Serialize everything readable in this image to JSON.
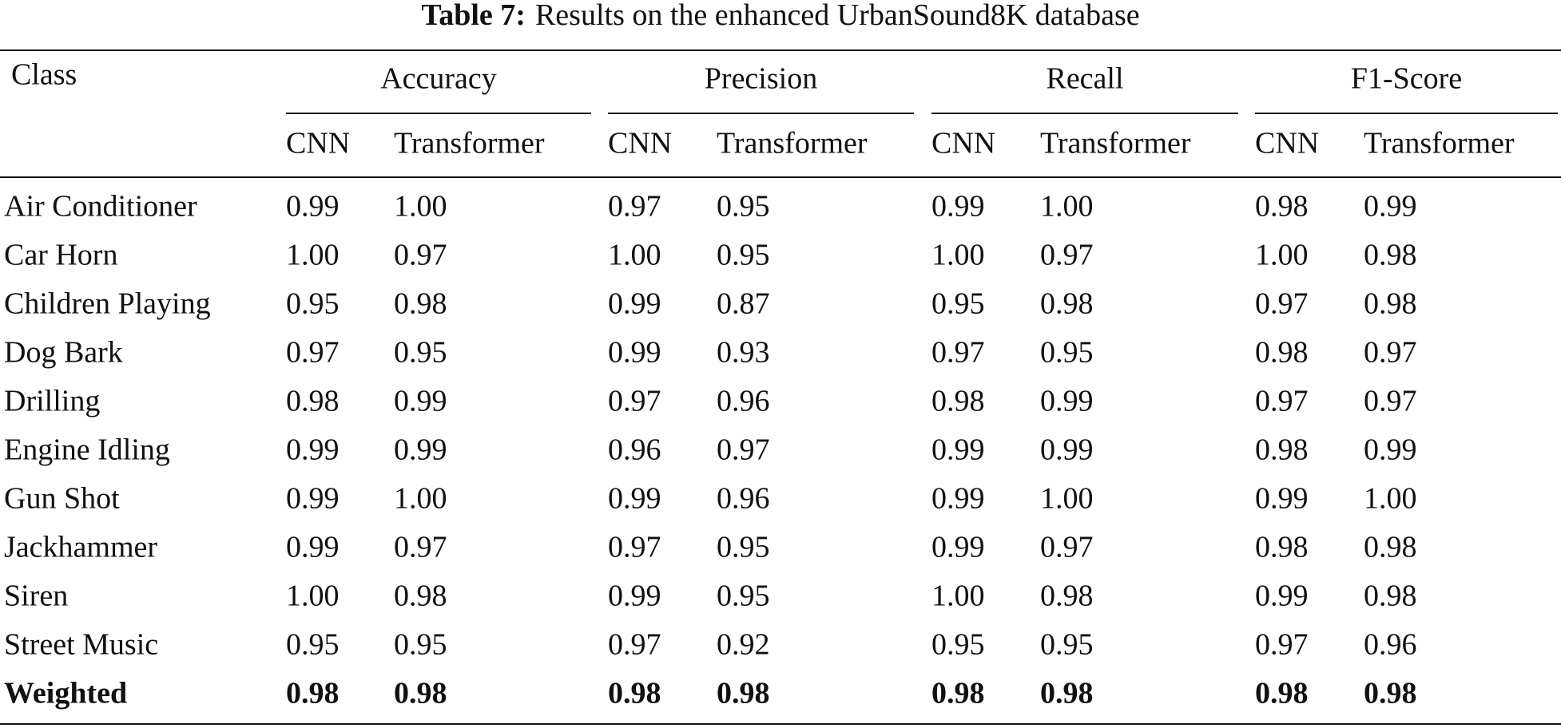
{
  "title": {
    "label": "Table 7:",
    "text": "Results on the enhanced UrbanSound8K database"
  },
  "table": {
    "header": {
      "class": "Class",
      "groups": [
        {
          "name": "Accuracy",
          "columns": [
            "CNN",
            "Transformer"
          ]
        },
        {
          "name": "Precision",
          "columns": [
            "CNN",
            "Transformer"
          ]
        },
        {
          "name": "Recall",
          "columns": [
            "CNN",
            "Transformer"
          ]
        },
        {
          "name": "F1-Score",
          "columns": [
            "CNN",
            "Transformer"
          ]
        }
      ]
    },
    "rows": [
      [
        "Air Conditioner",
        "0.99",
        "1.00",
        "0.97",
        "0.95",
        "0.99",
        "1.00",
        "0.98",
        "0.99"
      ],
      [
        "Car Horn",
        "1.00",
        "0.97",
        "1.00",
        "0.95",
        "1.00",
        "0.97",
        "1.00",
        "0.98"
      ],
      [
        "Children Playing",
        "0.95",
        "0.98",
        "0.99",
        "0.87",
        "0.95",
        "0.98",
        "0.97",
        "0.98"
      ],
      [
        "Dog Bark",
        "0.97",
        "0.95",
        "0.99",
        "0.93",
        "0.97",
        "0.95",
        "0.98",
        "0.97"
      ],
      [
        "Drilling",
        "0.98",
        "0.99",
        "0.97",
        "0.96",
        "0.98",
        "0.99",
        "0.97",
        "0.97"
      ],
      [
        "Engine Idling",
        "0.99",
        "0.99",
        "0.96",
        "0.97",
        "0.99",
        "0.99",
        "0.98",
        "0.99"
      ],
      [
        "Gun Shot",
        "0.99",
        "1.00",
        "0.99",
        "0.96",
        "0.99",
        "1.00",
        "0.99",
        "1.00"
      ],
      [
        "Jackhammer",
        "0.99",
        "0.97",
        "0.97",
        "0.95",
        "0.99",
        "0.97",
        "0.98",
        "0.98"
      ],
      [
        "Siren",
        "1.00",
        "0.98",
        "0.99",
        "0.95",
        "1.00",
        "0.98",
        "0.99",
        "0.98"
      ],
      [
        "Street Music",
        "0.95",
        "0.95",
        "0.97",
        "0.92",
        "0.95",
        "0.95",
        "0.97",
        "0.96"
      ],
      [
        "Weighted",
        "0.98",
        "0.98",
        "0.98",
        "0.98",
        "0.98",
        "0.98",
        "0.98",
        "0.98"
      ]
    ]
  }
}
